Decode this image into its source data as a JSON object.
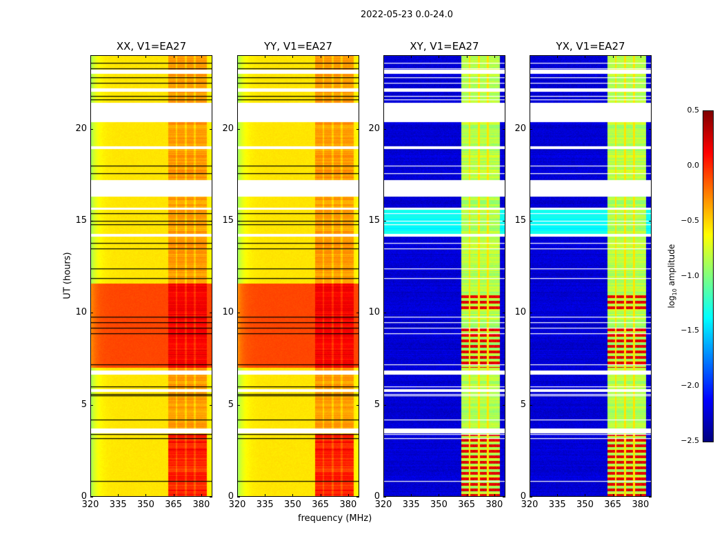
{
  "chart_data": {
    "type": "heatmap",
    "title": "2022-05-23 0.0-24.0",
    "xlabel": "frequency (MHz)",
    "ylabel": "UT (hours)",
    "xlim": [
      320,
      386
    ],
    "ylim": [
      0,
      24
    ],
    "xticks": [
      "320",
      "335",
      "350",
      "365",
      "380"
    ],
    "yticks": [
      "0",
      "5",
      "10",
      "15",
      "20"
    ],
    "panels": [
      {
        "title": "XX, V1=EA27",
        "kind": "parallel"
      },
      {
        "title": "YY, V1=EA27",
        "kind": "parallel"
      },
      {
        "title": "XY, V1=EA27",
        "kind": "cross"
      },
      {
        "title": "YX, V1=EA27",
        "kind": "cross"
      }
    ],
    "colorbar": {
      "label": "log10 amplitude",
      "label_main": "log",
      "label_sub": "10",
      "label_rest": " amplitude",
      "colormap": "jet",
      "range": [
        -2.5,
        0.5
      ],
      "ticks": [
        "0.5",
        "0.0",
        "−0.5",
        "−1.0",
        "−1.5",
        "−2.0",
        "−2.5"
      ],
      "tick_values": [
        0.5,
        0.0,
        -0.5,
        -1.0,
        -1.5,
        -2.0,
        -2.5
      ]
    },
    "features": {
      "flagged_gaps_hours": [
        [
          20.35,
          21.4
        ],
        [
          18.9,
          19.05
        ],
        [
          16.3,
          17.2
        ],
        [
          15.6,
          15.7
        ],
        [
          14.15,
          14.3
        ],
        [
          6.65,
          6.85
        ],
        [
          5.7,
          5.85
        ],
        [
          3.45,
          3.7
        ],
        [
          23.0,
          23.2
        ],
        [
          22.0,
          22.2
        ]
      ],
      "flag_lines_hours": [
        23.6,
        23.3,
        22.8,
        22.5,
        21.8,
        21.6,
        18.0,
        17.6,
        15.4,
        15.0,
        14.8,
        13.8,
        13.5,
        12.4,
        11.9,
        9.8,
        9.5,
        9.2,
        8.9,
        7.2,
        6.0,
        5.6,
        5.5,
        4.2,
        3.4,
        3.2,
        0.85
      ],
      "bright_band_mhz": [
        362,
        383
      ],
      "sub_band_gaps_mhz": [
        366.6,
        371.6,
        376.6
      ],
      "high_parallel_hours": [
        7.0,
        11.6
      ],
      "strong_band_hours": [
        [
          0,
          3.4
        ],
        [
          7.0,
          9.2
        ],
        [
          10.2,
          11.0
        ]
      ]
    }
  }
}
